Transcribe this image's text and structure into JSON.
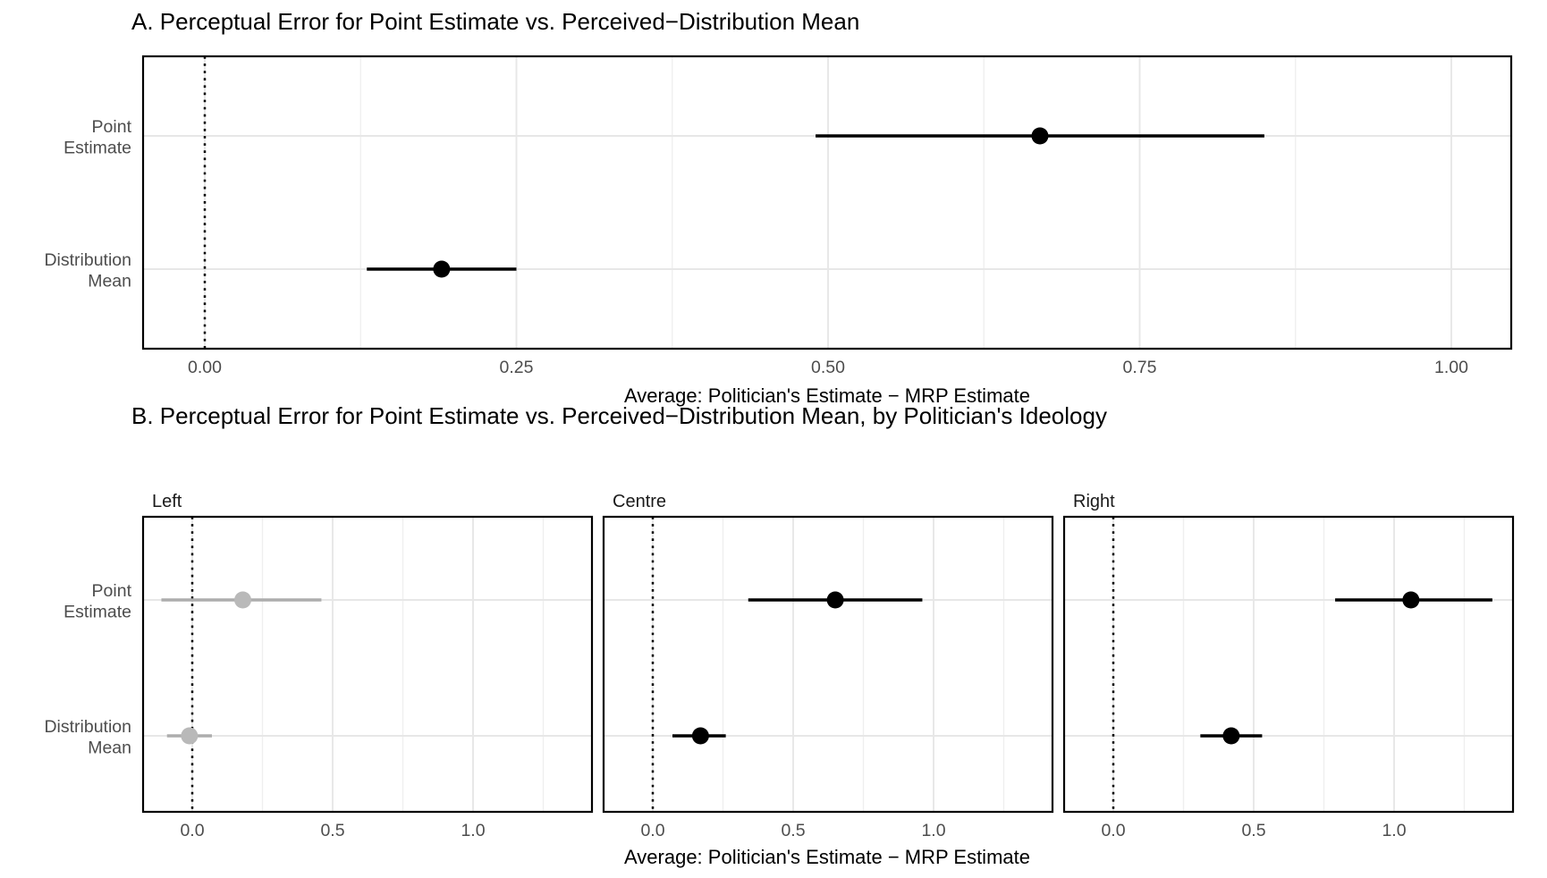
{
  "style": {
    "background": "#ffffff",
    "panel_border_color": "#000000",
    "grid_major_color": "#e7e7e7",
    "grid_minor_color": "#efefef",
    "axis_text_color": "#4d4d4d",
    "strip_text_color": "#1a1a1a",
    "title_color": "#000000",
    "black_series_color": "#000000",
    "gray_series_point_color": "#b9b9b9",
    "gray_series_line_color": "#adadad",
    "reference_line_color": "#000000"
  },
  "chart_data": [
    {
      "id": "A",
      "type": "dot-interval",
      "title": "A. Perceptual Error for Point Estimate vs. Perceived−Distribution Mean",
      "xlabel": "Average: Politician's Estimate − MRP Estimate",
      "ylabel": "",
      "categories": [
        "Point Estimate",
        "Distribution Mean"
      ],
      "category_display": [
        [
          "Point",
          "Estimate"
        ],
        [
          "Distribution",
          "Mean"
        ]
      ],
      "x_ticks": [
        0,
        0.25,
        0.5,
        0.75,
        1
      ],
      "x_tick_labels": [
        "0.00",
        "0.25",
        "0.50",
        "0.75",
        "1.00"
      ],
      "xlim": [
        -0.05,
        1.048
      ],
      "grid": true,
      "legend": "none",
      "reference_line": {
        "x": 0,
        "style": "dotted",
        "color": "#000000"
      },
      "points": [
        {
          "category": "Point Estimate",
          "x": 0.67,
          "ci_low": 0.49,
          "ci_high": 0.85,
          "point_color": "#000000",
          "line_color": "#000000"
        },
        {
          "category": "Distribution Mean",
          "x": 0.19,
          "ci_low": 0.13,
          "ci_high": 0.25,
          "point_color": "#000000",
          "line_color": "#000000"
        }
      ]
    },
    {
      "id": "B",
      "type": "dot-interval",
      "faceted_by": "Politician's Ideology",
      "title": "B. Perceptual Error for Point Estimate vs. Perceived−Distribution Mean, by Politician's Ideology",
      "xlabel": "Average: Politician's Estimate − MRP Estimate",
      "ylabel": "",
      "categories": [
        "Point Estimate",
        "Distribution Mean"
      ],
      "category_display": [
        [
          "Point",
          "Estimate"
        ],
        [
          "Distribution",
          "Mean"
        ]
      ],
      "x_ticks": [
        0,
        0.5,
        1
      ],
      "x_tick_labels": [
        "0.0",
        "0.5",
        "1.0"
      ],
      "xlim": [
        -0.175,
        1.423
      ],
      "grid": true,
      "legend": "none",
      "reference_line": {
        "x": 0,
        "style": "dotted",
        "color": "#000000"
      },
      "facets": [
        {
          "label": "Left",
          "point_color": "#b9b9b9",
          "line_color": "#adadad",
          "points": [
            {
              "category": "Point Estimate",
              "x": 0.18,
              "ci_low": -0.11,
              "ci_high": 0.46
            },
            {
              "category": "Distribution Mean",
              "x": -0.01,
              "ci_low": -0.09,
              "ci_high": 0.07
            }
          ]
        },
        {
          "label": "Centre",
          "point_color": "#000000",
          "line_color": "#000000",
          "points": [
            {
              "category": "Point Estimate",
              "x": 0.65,
              "ci_low": 0.34,
              "ci_high": 0.96
            },
            {
              "category": "Distribution Mean",
              "x": 0.17,
              "ci_low": 0.07,
              "ci_high": 0.26
            }
          ]
        },
        {
          "label": "Right",
          "point_color": "#000000",
          "line_color": "#000000",
          "points": [
            {
              "category": "Point Estimate",
              "x": 1.06,
              "ci_low": 0.79,
              "ci_high": 1.35
            },
            {
              "category": "Distribution Mean",
              "x": 0.42,
              "ci_low": 0.31,
              "ci_high": 0.53
            }
          ]
        }
      ]
    }
  ]
}
